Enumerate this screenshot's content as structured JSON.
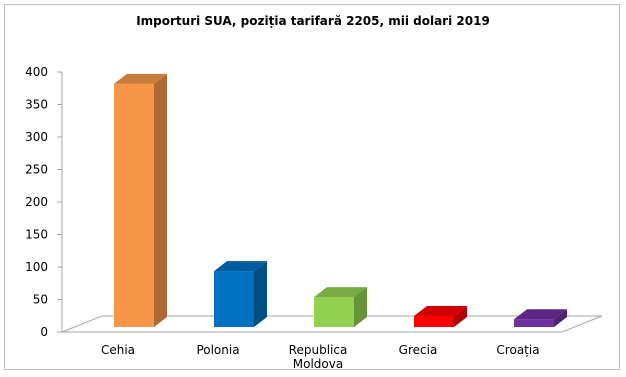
{
  "chart_data": {
    "type": "bar",
    "title": "Importuri SUA, poziția tarifară 2205, mii dolari 2019",
    "xlabel": "",
    "ylabel": "",
    "categories": [
      "Cehia",
      "Polonia",
      "Republica Moldova",
      "Grecia",
      "Croația"
    ],
    "category_lines": [
      [
        "Cehia"
      ],
      [
        "Polonia"
      ],
      [
        "Republica",
        "Moldova"
      ],
      [
        "Grecia"
      ],
      [
        "Croația"
      ]
    ],
    "values": [
      374,
      86,
      46,
      17,
      12
    ],
    "colors": [
      "#F79646",
      "#0070C0",
      "#92D050",
      "#FF0000",
      "#7030A0"
    ],
    "ylim": [
      0,
      400
    ],
    "yticks": [
      0,
      50,
      100,
      150,
      200,
      250,
      300,
      350,
      400
    ],
    "grid": false,
    "legend": "none",
    "style": "3d-column"
  }
}
